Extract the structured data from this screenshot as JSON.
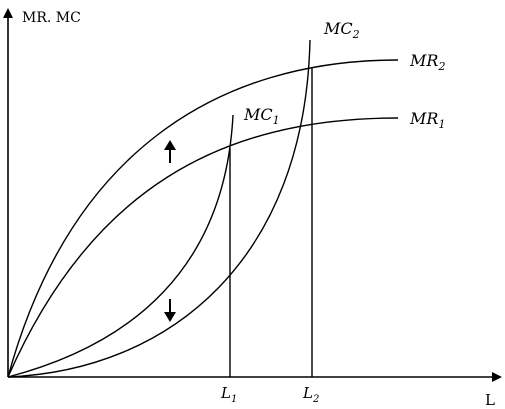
{
  "axes": {
    "y_label": "MR. MC",
    "x_label": "L"
  },
  "curves": {
    "mr2": {
      "base": "MR",
      "sub": "2"
    },
    "mr1": {
      "base": "MR",
      "sub": "1"
    },
    "mc1": {
      "base": "MC",
      "sub": "1"
    },
    "mc2": {
      "base": "MC",
      "sub": "2"
    }
  },
  "ticks": {
    "l1": {
      "base": "L",
      "sub": "1"
    },
    "l2": {
      "base": "L",
      "sub": "2"
    }
  },
  "arrows": {
    "up": "up-arrow-icon",
    "down": "down-arrow-icon"
  }
}
